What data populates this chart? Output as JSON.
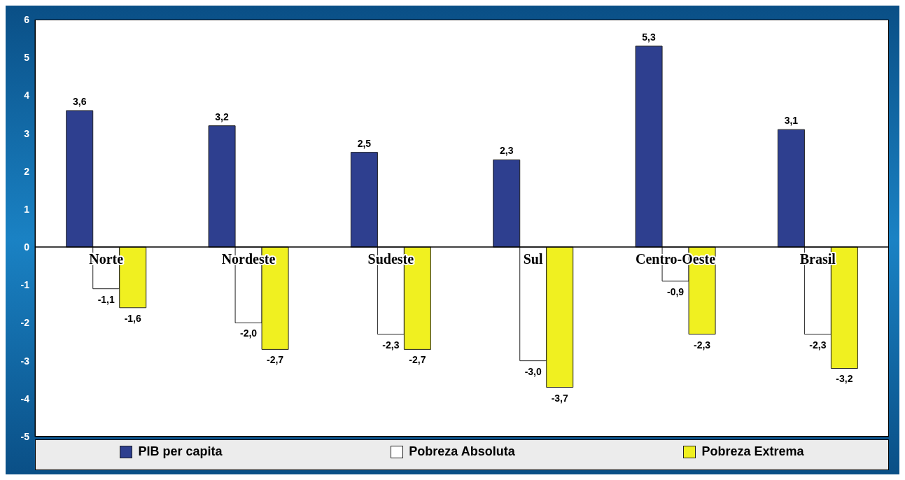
{
  "chart_data": {
    "type": "bar",
    "categories": [
      "Norte",
      "Nordeste",
      "Sudeste",
      "Sul",
      "Centro-Oeste",
      "Brasil"
    ],
    "series": [
      {
        "name": "PIB per capita",
        "color": "#2e3f8f",
        "values": [
          3.6,
          3.2,
          2.5,
          2.3,
          5.3,
          3.1
        ],
        "value_labels": [
          "3,6",
          "3,2",
          "2,5",
          "2,3",
          "5,3",
          "3,1"
        ]
      },
      {
        "name": "Pobreza Absoluta",
        "color": "#ffffff",
        "values": [
          -1.1,
          -2.0,
          -2.3,
          -3.0,
          -0.9,
          -2.3
        ],
        "value_labels": [
          "-1,1",
          "-2,0",
          "-2,3",
          "-3,0",
          "-0,9",
          "-2,3"
        ]
      },
      {
        "name": "Pobreza Extrema",
        "color": "#f0f020",
        "values": [
          -1.6,
          -2.7,
          -2.7,
          -3.7,
          -2.3,
          -3.2
        ],
        "value_labels": [
          "-1,6",
          "-2,7",
          "-2,7",
          "-3,7",
          "-2,3",
          "-3,2"
        ]
      }
    ],
    "ylim": [
      -5,
      6
    ],
    "yticks": [
      -5,
      -4,
      -3,
      -2,
      -1,
      0,
      1,
      2,
      3,
      4,
      5,
      6
    ],
    "legend": "bottom"
  }
}
